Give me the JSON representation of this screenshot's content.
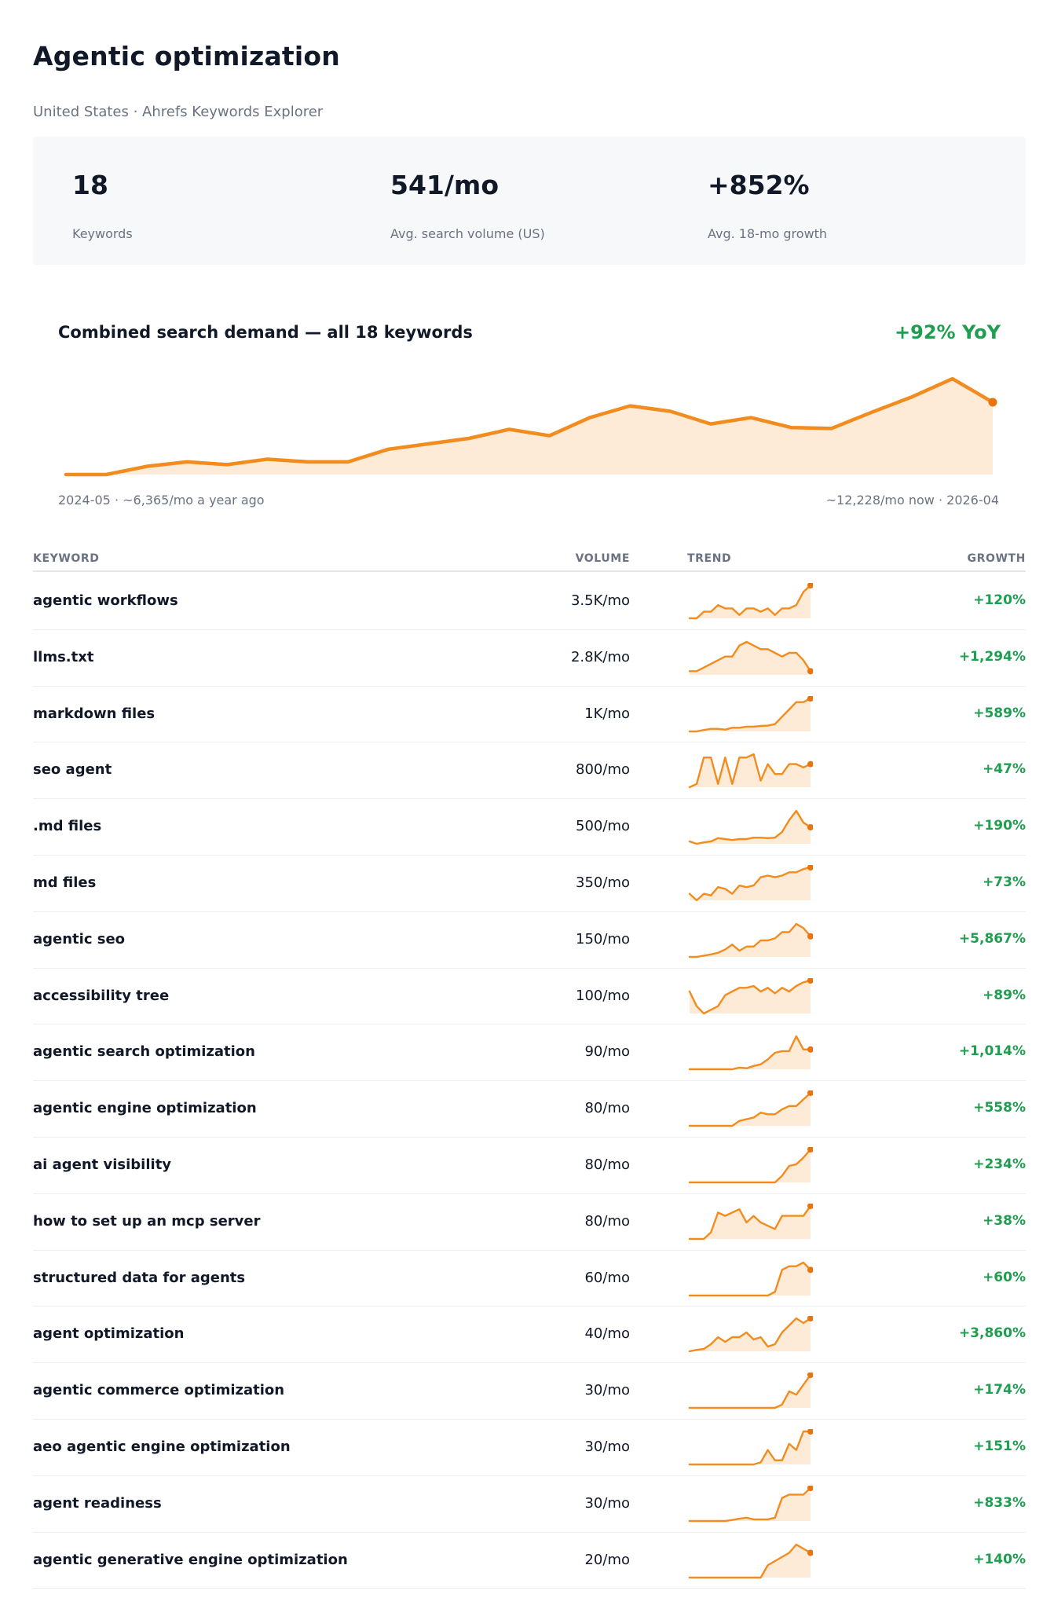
{
  "page": {
    "title": "Agentic optimization",
    "subtitle": "United States · Ahrefs Keywords Explorer"
  },
  "colors": {
    "line": "#f28c1e",
    "fill": "#fdebd8",
    "end_dot": "#e8740c",
    "growth": "#1e9e4f"
  },
  "stats": [
    {
      "value": "18",
      "label": "Keywords"
    },
    {
      "value": "541/mo",
      "label": "Avg. search volume (US)"
    },
    {
      "value": "+852%",
      "label": "Avg. 18-mo growth"
    }
  ],
  "combined": {
    "title": "Combined search demand — all 18 keywords",
    "yoy": "+92% YoY",
    "foot_left": "2024-05 · ~6,365/mo a year ago",
    "foot_right": "~12,228/mo now · 2026-04"
  },
  "table": {
    "headers": {
      "keyword": "KEYWORD",
      "volume": "VOLUME",
      "trend": "TREND",
      "growth": "GROWTH"
    },
    "rows": [
      {
        "keyword": "agentic workflows",
        "volume": "3.5K/mo",
        "growth": "+120%"
      },
      {
        "keyword": "llms.txt",
        "volume": "2.8K/mo",
        "growth": "+1,294%"
      },
      {
        "keyword": "markdown files",
        "volume": "1K/mo",
        "growth": "+589%"
      },
      {
        "keyword": "seo agent",
        "volume": "800/mo",
        "growth": "+47%"
      },
      {
        "keyword": ".md files",
        "volume": "500/mo",
        "growth": "+190%"
      },
      {
        "keyword": "md files",
        "volume": "350/mo",
        "growth": "+73%"
      },
      {
        "keyword": "agentic seo",
        "volume": "150/mo",
        "growth": "+5,867%"
      },
      {
        "keyword": "accessibility tree",
        "volume": "100/mo",
        "growth": "+89%"
      },
      {
        "keyword": "agentic search optimization",
        "volume": "90/mo",
        "growth": "+1,014%"
      },
      {
        "keyword": "agentic engine optimization",
        "volume": "80/mo",
        "growth": "+558%"
      },
      {
        "keyword": "ai agent visibility",
        "volume": "80/mo",
        "growth": "+234%"
      },
      {
        "keyword": "how to set up an mcp server",
        "volume": "80/mo",
        "growth": "+38%"
      },
      {
        "keyword": "structured data for agents",
        "volume": "60/mo",
        "growth": "+60%"
      },
      {
        "keyword": "agent optimization",
        "volume": "40/mo",
        "growth": "+3,860%"
      },
      {
        "keyword": "agentic commerce optimization",
        "volume": "30/mo",
        "growth": "+174%"
      },
      {
        "keyword": "aeo agentic engine optimization",
        "volume": "30/mo",
        "growth": "+151%"
      },
      {
        "keyword": "agent readiness",
        "volume": "30/mo",
        "growth": "+833%"
      },
      {
        "keyword": "agentic generative engine optimization",
        "volume": "20/mo",
        "growth": "+140%"
      }
    ]
  },
  "chart_data": [
    {
      "type": "area",
      "title": "Combined search demand — all 18 keywords",
      "x": [
        "2024-05",
        "2024-06",
        "2024-07",
        "2024-08",
        "2024-09",
        "2024-10",
        "2024-11",
        "2024-12",
        "2025-01",
        "2025-02",
        "2025-03",
        "2025-04",
        "2025-05",
        "2025-06",
        "2025-07",
        "2025-08",
        "2025-09",
        "2025-10",
        "2025-11",
        "2025-12",
        "2025-13",
        "2025-14",
        "2025-15",
        "2026-04"
      ],
      "values": [
        0.0,
        0.0,
        0.09,
        0.14,
        0.11,
        0.17,
        0.14,
        0.14,
        0.28,
        0.34,
        0.4,
        0.5,
        0.43,
        0.63,
        0.76,
        0.7,
        0.56,
        0.63,
        0.52,
        0.51,
        0.69,
        0.86,
        1.06,
        0.8
      ],
      "y_unit": "relative demand",
      "ylim": [
        0,
        1.2
      ],
      "grid": false,
      "legend": "none"
    },
    {
      "type": "area",
      "series_name": "agentic workflows",
      "values": [
        0,
        0,
        2,
        2,
        4,
        3,
        3,
        1,
        3,
        3,
        2,
        3,
        1,
        3,
        3,
        4,
        8,
        10
      ]
    },
    {
      "type": "area",
      "series_name": "llms.txt",
      "values": [
        1,
        1,
        2,
        3,
        4,
        5,
        5,
        8,
        9,
        8,
        7,
        7,
        6,
        5,
        6,
        6,
        4,
        1
      ]
    },
    {
      "type": "area",
      "series_name": "markdown files",
      "values": [
        0,
        0,
        0.4,
        0.7,
        0.7,
        0.5,
        1,
        1,
        1.3,
        1.3,
        1.5,
        1.6,
        2,
        4,
        6,
        8,
        8,
        9
      ]
    },
    {
      "type": "area",
      "series_name": "seo agent",
      "values": [
        0,
        1,
        9,
        9,
        1,
        9,
        1,
        9,
        9,
        10,
        2,
        7,
        4,
        4,
        7,
        7,
        6,
        7
      ]
    },
    {
      "type": "area",
      "series_name": ".md files",
      "values": [
        0.5,
        0,
        0.3,
        0.5,
        1.2,
        1,
        0.8,
        1,
        1,
        1.3,
        1.3,
        1.2,
        1.3,
        2.5,
        5,
        7,
        4.5,
        3.5
      ]
    },
    {
      "type": "area",
      "series_name": "md files",
      "values": [
        2,
        0,
        2,
        1.5,
        4,
        3.5,
        2,
        4.5,
        4,
        4.5,
        7,
        7.5,
        7,
        7.5,
        8.5,
        8.5,
        9.5,
        10
      ]
    },
    {
      "type": "area",
      "series_name": "agentic seo",
      "values": [
        0,
        0,
        0.3,
        0.6,
        1,
        1.8,
        3,
        1.5,
        2.5,
        2.5,
        4,
        4,
        4.5,
        6,
        6,
        8,
        7,
        5
      ]
    },
    {
      "type": "area",
      "series_name": "accessibility tree",
      "values": [
        6,
        2,
        0,
        1,
        2,
        5,
        6,
        7,
        7,
        7.5,
        6,
        7,
        5.5,
        7,
        6,
        7.5,
        8.5,
        9
      ]
    },
    {
      "type": "area",
      "series_name": "agentic search optimization",
      "values": [
        0,
        0,
        0,
        0,
        0,
        0,
        0,
        0.5,
        0.3,
        1,
        1.5,
        3,
        5,
        5.5,
        5.5,
        10,
        6,
        6
      ]
    },
    {
      "type": "area",
      "series_name": "agentic engine optimization",
      "values": [
        0,
        0,
        0,
        0,
        0,
        0,
        0,
        1.5,
        2,
        2.5,
        4,
        3.5,
        3.5,
        5,
        6,
        6,
        8,
        10
      ]
    },
    {
      "type": "area",
      "series_name": "ai agent visibility",
      "values": [
        0,
        0,
        0,
        0,
        0,
        0,
        0,
        0,
        0,
        0,
        0,
        0,
        0,
        2,
        5,
        5.5,
        7.5,
        10
      ]
    },
    {
      "type": "area",
      "series_name": "how to set up an mcp server",
      "values": [
        0,
        0,
        0,
        2,
        8,
        7,
        8,
        9,
        5,
        7,
        5,
        4,
        3,
        7,
        7,
        7,
        7,
        10
      ]
    },
    {
      "type": "area",
      "series_name": "structured data for agents",
      "values": [
        0,
        0,
        0,
        0,
        0,
        0,
        0,
        0,
        0,
        0,
        0,
        0,
        1,
        7,
        8,
        8,
        9,
        7
      ]
    },
    {
      "type": "area",
      "series_name": "agent optimization",
      "values": [
        0,
        0.3,
        0.5,
        1.5,
        3,
        2,
        3,
        3,
        4,
        2.5,
        3,
        1,
        1.5,
        4,
        5.5,
        7,
        6,
        7
      ]
    },
    {
      "type": "area",
      "series_name": "agentic commerce optimization",
      "values": [
        0,
        0,
        0,
        0,
        0,
        0,
        0,
        0,
        0,
        0,
        0,
        0,
        0,
        1,
        5,
        4,
        7,
        10
      ]
    },
    {
      "type": "area",
      "series_name": "aeo agentic engine optimization",
      "values": [
        0,
        0,
        0,
        0,
        0,
        0,
        0,
        0,
        0,
        0,
        0.5,
        3.5,
        1,
        1,
        5,
        3.5,
        8,
        8
      ]
    },
    {
      "type": "area",
      "series_name": "agent readiness",
      "values": [
        0,
        0,
        0,
        0,
        0,
        0,
        0.3,
        0.7,
        1,
        0.5,
        0.5,
        0.5,
        1,
        7,
        8,
        8,
        8,
        10
      ]
    },
    {
      "type": "area",
      "series_name": "agentic generative engine optimization",
      "values": [
        0,
        0,
        0,
        0,
        0,
        0,
        0,
        0,
        0,
        0,
        0,
        3,
        4,
        5,
        6,
        8,
        7,
        6
      ]
    }
  ]
}
